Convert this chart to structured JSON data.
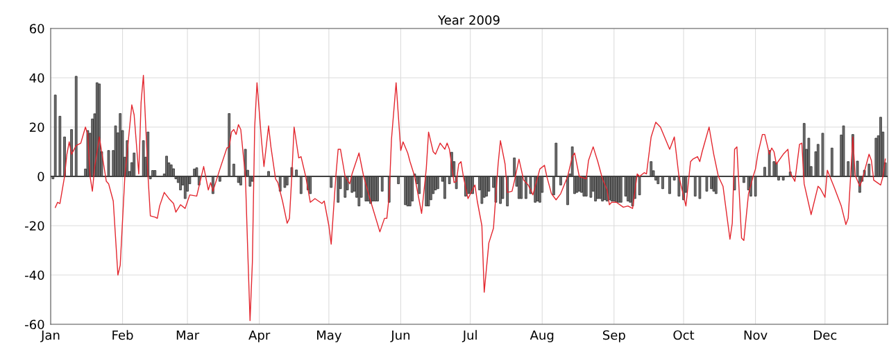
{
  "chart_data": {
    "type": "bar",
    "title": "Year 2009",
    "xlim": [
      "2009-01-01",
      "2009-12-28"
    ],
    "xticks": [
      {
        "value": "2009-01-01",
        "label": "Jan"
      },
      {
        "value": "2009-02-01",
        "label": "Feb"
      },
      {
        "value": "2009-03-01",
        "label": "Mar"
      },
      {
        "value": "2009-04-01",
        "label": "Apr"
      },
      {
        "value": "2009-05-01",
        "label": "May"
      },
      {
        "value": "2009-06-01",
        "label": "Jun"
      },
      {
        "value": "2009-07-01",
        "label": "Jul"
      },
      {
        "value": "2009-08-01",
        "label": "Aug"
      },
      {
        "value": "2009-09-01",
        "label": "Sep"
      },
      {
        "value": "2009-10-01",
        "label": "Oct"
      },
      {
        "value": "2009-11-01",
        "label": "Nov"
      },
      {
        "value": "2009-12-01",
        "label": "Dec"
      }
    ],
    "ylim": [
      -60,
      60
    ],
    "yticks": [
      -60,
      -40,
      -20,
      0,
      20,
      40,
      60
    ],
    "grid": true,
    "ref_lines": [
      {
        "axis": "y",
        "value": 0,
        "color": "#404040"
      }
    ],
    "series": [
      {
        "color": "#707070",
        "x": [
          "2009-01-02",
          "2009-01-03",
          "2009-01-05",
          "2009-01-07",
          "2009-01-10",
          "2009-01-12",
          "2009-01-16",
          "2009-01-17",
          "2009-01-18",
          "2009-01-19",
          "2009-01-20",
          "2009-01-21",
          "2009-01-22",
          "2009-01-23",
          "2009-01-26",
          "2009-01-28",
          "2009-01-29",
          "2009-01-30",
          "2009-01-31",
          "2009-02-01",
          "2009-02-02",
          "2009-02-03",
          "2009-02-04",
          "2009-02-05",
          "2009-02-06",
          "2009-02-10",
          "2009-02-11",
          "2009-02-12",
          "2009-02-13",
          "2009-02-14",
          "2009-02-15",
          "2009-02-19",
          "2009-02-20",
          "2009-02-21",
          "2009-02-22",
          "2009-02-23",
          "2009-02-24",
          "2009-02-25",
          "2009-02-26",
          "2009-02-27",
          "2009-02-28",
          "2009-03-01",
          "2009-03-02",
          "2009-03-04",
          "2009-03-05",
          "2009-03-06",
          "2009-03-12",
          "2009-03-15",
          "2009-03-19",
          "2009-03-21",
          "2009-03-23",
          "2009-03-24",
          "2009-03-26",
          "2009-03-27",
          "2009-03-28",
          "2009-03-29",
          "2009-04-05",
          "2009-04-10",
          "2009-04-12",
          "2009-04-13",
          "2009-04-15",
          "2009-04-17",
          "2009-04-19",
          "2009-04-22",
          "2009-04-23",
          "2009-05-02",
          "2009-05-05",
          "2009-05-06",
          "2009-05-08",
          "2009-05-09",
          "2009-05-11",
          "2009-05-12",
          "2009-05-13",
          "2009-05-14",
          "2009-05-15",
          "2009-05-17",
          "2009-05-18",
          "2009-05-19",
          "2009-05-20",
          "2009-05-21",
          "2009-05-22",
          "2009-05-24",
          "2009-05-27",
          "2009-05-31",
          "2009-06-03",
          "2009-06-04",
          "2009-06-05",
          "2009-06-06",
          "2009-06-07",
          "2009-06-08",
          "2009-06-09",
          "2009-06-12",
          "2009-06-13",
          "2009-06-14",
          "2009-06-15",
          "2009-06-16",
          "2009-06-17",
          "2009-06-19",
          "2009-06-20",
          "2009-06-22",
          "2009-06-23",
          "2009-06-24",
          "2009-06-25",
          "2009-06-28",
          "2009-06-29",
          "2009-06-30",
          "2009-07-01",
          "2009-07-02",
          "2009-07-05",
          "2009-07-06",
          "2009-07-07",
          "2009-07-08",
          "2009-07-09",
          "2009-07-11",
          "2009-07-12",
          "2009-07-14",
          "2009-07-15",
          "2009-07-17",
          "2009-07-20",
          "2009-07-21",
          "2009-07-22",
          "2009-07-23",
          "2009-07-25",
          "2009-07-27",
          "2009-07-29",
          "2009-07-30",
          "2009-07-31",
          "2009-08-01",
          "2009-08-06",
          "2009-08-07",
          "2009-08-09",
          "2009-08-12",
          "2009-08-13",
          "2009-08-14",
          "2009-08-15",
          "2009-08-16",
          "2009-08-17",
          "2009-08-18",
          "2009-08-19",
          "2009-08-20",
          "2009-08-22",
          "2009-08-23",
          "2009-08-24",
          "2009-08-25",
          "2009-08-26",
          "2009-08-27",
          "2009-08-28",
          "2009-08-29",
          "2009-08-30",
          "2009-08-31",
          "2009-09-01",
          "2009-09-02",
          "2009-09-03",
          "2009-09-04",
          "2009-09-06",
          "2009-09-07",
          "2009-09-08",
          "2009-09-09",
          "2009-09-10",
          "2009-09-12",
          "2009-09-16",
          "2009-09-17",
          "2009-09-18",
          "2009-09-19",
          "2009-09-20",
          "2009-09-22",
          "2009-09-25",
          "2009-09-27",
          "2009-09-29",
          "2009-10-01",
          "2009-10-02",
          "2009-10-06",
          "2009-10-08",
          "2009-10-11",
          "2009-10-13",
          "2009-10-14",
          "2009-10-15",
          "2009-10-23",
          "2009-10-27",
          "2009-10-29",
          "2009-10-30",
          "2009-11-01",
          "2009-11-05",
          "2009-11-07",
          "2009-11-09",
          "2009-11-10",
          "2009-11-11",
          "2009-11-13",
          "2009-11-16",
          "2009-11-22",
          "2009-11-23",
          "2009-11-24",
          "2009-11-25",
          "2009-11-27",
          "2009-11-28",
          "2009-11-30",
          "2009-12-04",
          "2009-12-08",
          "2009-12-09",
          "2009-12-11",
          "2009-12-13",
          "2009-12-14",
          "2009-12-15",
          "2009-12-16",
          "2009-12-17",
          "2009-12-18",
          "2009-12-20",
          "2009-12-23",
          "2009-12-24",
          "2009-12-25",
          "2009-12-26",
          "2009-12-27"
        ],
        "values": [
          -1,
          33,
          24.4,
          16,
          19,
          40.6,
          3,
          18.6,
          17.5,
          23.3,
          25.4,
          38,
          37.5,
          10,
          10.5,
          10.5,
          20.5,
          17.7,
          25.5,
          18.6,
          7.8,
          14.5,
          2,
          5.6,
          9.5,
          14.5,
          7.8,
          18,
          -1,
          2.4,
          2.4,
          1,
          8.2,
          5.5,
          4.7,
          3.1,
          -1,
          -2.5,
          -5.5,
          -3.5,
          -9,
          -6,
          -3,
          3,
          3.5,
          -3.5,
          -7,
          -2,
          25.5,
          5,
          -2.5,
          -3.5,
          11,
          2.5,
          -4,
          -2,
          2,
          -6,
          -4.5,
          -3.5,
          3.6,
          2.6,
          -7,
          -5.5,
          -7,
          -4.5,
          -10.5,
          -5,
          -8.5,
          -5.5,
          -6.5,
          -6,
          -8.5,
          -12,
          -8.5,
          -10,
          -10,
          -11,
          -10,
          -10,
          -10,
          -6,
          -10.5,
          -3,
          -11.5,
          -12,
          -12,
          -10,
          1,
          -3,
          -7,
          -12,
          -12,
          -9.5,
          -7,
          -5.5,
          -5,
          -2,
          -9,
          -3,
          9.8,
          6,
          -5,
          null,
          -8,
          -7,
          -7,
          -7,
          -5.5,
          -11,
          -8.5,
          -8,
          -6,
          -4.5,
          -10.5,
          -11,
          -9,
          -12,
          7.5,
          -4,
          -9,
          -9,
          -9,
          -7,
          -10.5,
          -10,
          -10.5,
          -6.5,
          -7.5,
          13.5,
          -3.5,
          -11.5,
          1,
          12,
          -7,
          -6.5,
          -6,
          -6.5,
          -8,
          -8,
          -8.5,
          -6,
          -10,
          -9,
          -9,
          -10,
          -9.5,
          -10,
          -9.5,
          -10,
          -10,
          -10.5,
          -10.5,
          -10.5,
          -8,
          -10,
          -10.5,
          -12,
          -9,
          -7.5,
          null,
          6,
          2.3,
          -1.5,
          -3,
          -5,
          -7,
          -1.5,
          -8,
          -9.5,
          -6.5,
          -8,
          -9,
          -6,
          -5,
          -6,
          -7,
          -5.5,
          -2.5,
          -5.5,
          -8,
          -8,
          3.7,
          10.5,
          6,
          5.5,
          -1.5,
          -1.5,
          1.8,
          21.5,
          11,
          15.5,
          4,
          10,
          13,
          17.5,
          11.5,
          16.8,
          20.5,
          6,
          17,
          null,
          6.2,
          -6.5,
          -2,
          2.5,
          5,
          15.5,
          16.5,
          24,
          18,
          5.5
        ]
      },
      {
        "type": "line",
        "color": "#e3262e",
        "x": [
          "2009-01-03",
          "2009-01-04",
          "2009-01-05",
          "2009-01-07",
          "2009-01-08",
          "2009-01-09",
          "2009-01-10",
          "2009-01-12",
          "2009-01-14",
          "2009-01-16",
          "2009-01-17",
          "2009-01-18",
          "2009-01-19",
          "2009-01-20",
          "2009-01-22",
          "2009-01-23",
          "2009-01-25",
          "2009-01-26",
          "2009-01-28",
          "2009-01-30",
          "2009-01-31",
          "2009-02-02",
          "2009-02-05",
          "2009-02-06",
          "2009-02-08",
          "2009-02-09",
          "2009-02-10",
          "2009-02-12",
          "2009-02-13",
          "2009-02-15",
          "2009-02-16",
          "2009-02-17",
          "2009-02-19",
          "2009-02-21",
          "2009-02-23",
          "2009-02-24",
          "2009-02-26",
          "2009-02-28",
          "2009-03-02",
          "2009-03-05",
          "2009-03-08",
          "2009-03-10",
          "2009-03-11",
          "2009-03-12",
          "2009-03-15",
          "2009-03-18",
          "2009-03-19",
          "2009-03-20",
          "2009-03-21",
          "2009-03-22",
          "2009-03-23",
          "2009-03-24",
          "2009-03-26",
          "2009-03-27",
          "2009-03-28",
          "2009-03-29",
          "2009-03-30",
          "2009-03-31",
          "2009-04-02",
          "2009-04-03",
          "2009-04-05",
          "2009-04-06",
          "2009-04-08",
          "2009-04-09",
          "2009-04-11",
          "2009-04-13",
          "2009-04-14",
          "2009-04-15",
          "2009-04-16",
          "2009-04-18",
          "2009-04-19",
          "2009-04-21",
          "2009-04-23",
          "2009-04-25",
          "2009-04-28",
          "2009-04-29",
          "2009-05-01",
          "2009-05-02",
          "2009-05-04",
          "2009-05-05",
          "2009-05-06",
          "2009-05-08",
          "2009-05-10",
          "2009-05-11",
          "2009-05-14",
          "2009-05-16",
          "2009-05-19",
          "2009-05-23",
          "2009-05-25",
          "2009-05-26",
          "2009-05-27",
          "2009-05-28",
          "2009-05-30",
          "2009-06-01",
          "2009-06-02",
          "2009-06-04",
          "2009-06-05",
          "2009-06-07",
          "2009-06-10",
          "2009-06-12",
          "2009-06-13",
          "2009-06-15",
          "2009-06-16",
          "2009-06-18",
          "2009-06-20",
          "2009-06-21",
          "2009-06-22",
          "2009-06-24",
          "2009-06-25",
          "2009-06-26",
          "2009-06-27",
          "2009-06-28",
          "2009-06-30",
          "2009-07-03",
          "2009-07-04",
          "2009-07-06",
          "2009-07-07",
          "2009-07-09",
          "2009-07-11",
          "2009-07-13",
          "2009-07-14",
          "2009-07-16",
          "2009-07-17",
          "2009-07-19",
          "2009-07-20",
          "2009-07-22",
          "2009-07-24",
          "2009-07-26",
          "2009-07-28",
          "2009-07-31",
          "2009-08-02",
          "2009-08-03",
          "2009-08-05",
          "2009-08-07",
          "2009-08-09",
          "2009-08-12",
          "2009-08-14",
          "2009-08-15",
          "2009-08-17",
          "2009-08-20",
          "2009-08-21",
          "2009-08-23",
          "2009-08-25",
          "2009-08-27",
          "2009-08-29",
          "2009-08-30",
          "2009-08-31",
          "2009-09-02",
          "2009-09-05",
          "2009-09-07",
          "2009-09-09",
          "2009-09-11",
          "2009-09-12",
          "2009-09-14",
          "2009-09-15",
          "2009-09-17",
          "2009-09-19",
          "2009-09-21",
          "2009-09-25",
          "2009-09-27",
          "2009-09-29",
          "2009-10-02",
          "2009-10-04",
          "2009-10-05",
          "2009-10-07",
          "2009-10-08",
          "2009-10-09",
          "2009-10-12",
          "2009-10-14",
          "2009-10-16",
          "2009-10-18",
          "2009-10-21",
          "2009-10-22",
          "2009-10-23",
          "2009-10-24",
          "2009-10-26",
          "2009-10-27",
          "2009-10-29",
          "2009-10-31",
          "2009-11-01",
          "2009-11-02",
          "2009-11-04",
          "2009-11-05",
          "2009-11-07",
          "2009-11-08",
          "2009-11-09",
          "2009-11-10",
          "2009-11-13",
          "2009-11-15",
          "2009-11-16",
          "2009-11-18",
          "2009-11-20",
          "2009-11-21",
          "2009-11-22",
          "2009-11-25",
          "2009-11-28",
          "2009-11-29",
          "2009-12-01",
          "2009-12-02",
          "2009-12-05",
          "2009-12-08",
          "2009-12-10",
          "2009-12-11",
          "2009-12-13",
          "2009-12-14",
          "2009-12-16",
          "2009-12-17",
          "2009-12-20",
          "2009-12-21",
          "2009-12-22",
          "2009-12-25",
          "2009-12-26",
          "2009-12-27"
        ],
        "values": [
          -12.6,
          -10.5,
          -11,
          0,
          9,
          14,
          9,
          12.5,
          13.5,
          20,
          17,
          0,
          -6,
          4,
          16,
          10,
          -2,
          -3,
          -10,
          -40,
          -36,
          0,
          29,
          25,
          1,
          30,
          41,
          0,
          -16,
          -16.5,
          -17,
          -12,
          -6.5,
          -9,
          -11,
          -14.5,
          -11.5,
          -13,
          -7.5,
          -8,
          4,
          -5.5,
          -2.5,
          -6,
          3,
          11.5,
          12,
          18,
          19,
          17,
          21,
          19,
          0,
          -30,
          -58.5,
          -35,
          20,
          38,
          14,
          4,
          20.5,
          12,
          -1,
          -2.5,
          -10,
          -19,
          -17,
          0,
          20,
          7.5,
          8,
          0,
          -10.5,
          -9,
          -11,
          -10,
          -20,
          -27.5,
          0,
          11,
          11,
          0,
          -3,
          1,
          9.5,
          0,
          -10,
          -22.5,
          -17,
          -17,
          -8,
          15,
          38,
          10.5,
          14,
          9.5,
          6,
          0,
          -15,
          3,
          18,
          10,
          9,
          13.5,
          11,
          13.5,
          11,
          -2.5,
          -2,
          5,
          6,
          0,
          -9,
          -3.5,
          -10,
          -20,
          -47,
          -27,
          -21,
          5,
          14.5,
          5,
          -6.5,
          -6,
          -2,
          7,
          -1.5,
          -3.5,
          -7.5,
          3,
          4.5,
          0,
          -7,
          -9.5,
          -7,
          0,
          8,
          9.5,
          0,
          -1,
          6.5,
          12,
          6,
          -1,
          -5.5,
          -11.5,
          -10.5,
          -10.5,
          -12.5,
          -12,
          -13,
          1,
          0,
          1.5,
          1,
          16,
          22,
          20,
          11,
          16,
          0,
          -12,
          6,
          7,
          8,
          6,
          10,
          20,
          9,
          0,
          -4,
          -25.5,
          -19,
          11,
          12,
          -25,
          -26,
          -7,
          0,
          3,
          9,
          17,
          17,
          9,
          11.5,
          10,
          5,
          9,
          11,
          1.5,
          -2,
          13,
          13.5,
          -3,
          -15.5,
          -4,
          -5,
          -8.5,
          2.5,
          -4.5,
          -12,
          -19.5,
          -17,
          16,
          0.5,
          -4,
          -1.5,
          9,
          6.5,
          -1.5,
          -3.5,
          0,
          7
        ]
      }
    ]
  }
}
